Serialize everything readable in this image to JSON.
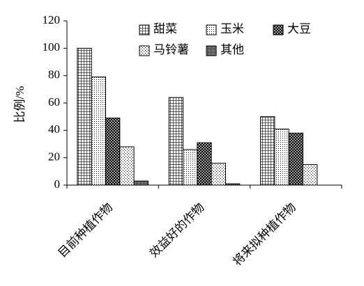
{
  "chart_data": {
    "type": "bar",
    "categories": [
      "目前种植作物",
      "效益好的作物",
      "将来拟种植作物"
    ],
    "y_label": "比例/%",
    "ylim": [
      0,
      120
    ],
    "yticks": [
      0,
      20,
      40,
      60,
      80,
      100,
      120
    ],
    "series": [
      {
        "name": "甜菜",
        "color": "#000000",
        "pattern": "grid",
        "values": [
          100,
          64,
          50
        ]
      },
      {
        "name": "玉米",
        "color": "#000000",
        "pattern": "dots",
        "values": [
          79,
          26,
          41
        ]
      },
      {
        "name": "大豆",
        "color": "#000000",
        "pattern": "cross",
        "values": [
          49,
          31,
          38
        ]
      },
      {
        "name": "马铃薯",
        "color": "#000000",
        "pattern": "lightgrid",
        "values": [
          28,
          16,
          15
        ]
      },
      {
        "name": "其他",
        "color": "#000000",
        "pattern": "dense",
        "values": [
          3,
          1,
          null
        ]
      }
    ]
  }
}
